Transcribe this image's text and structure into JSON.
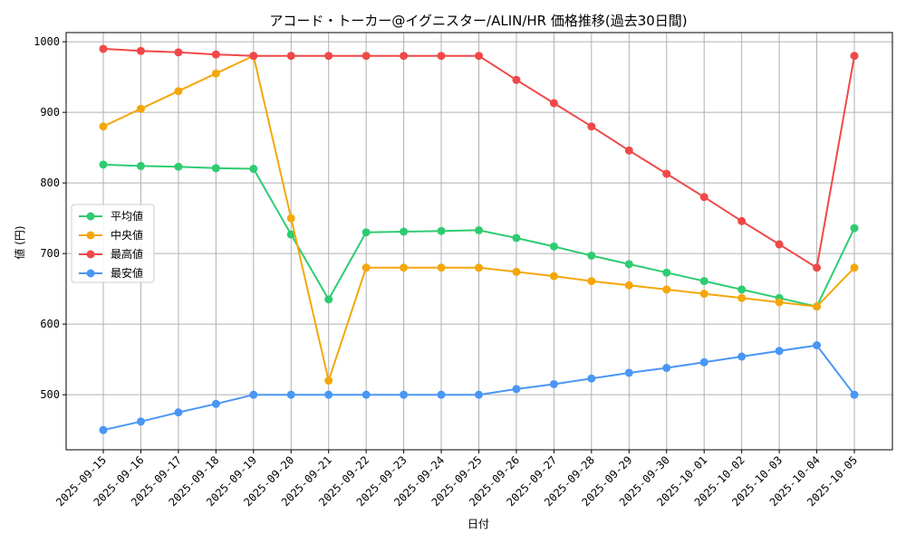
{
  "chart_data": {
    "type": "line",
    "title": "アコード・トーカー@イグニスター/ALIN/HR 価格推移(過去30日間)",
    "xlabel": "日付",
    "ylabel": "値 (円)",
    "ylim": [
      422,
      1013
    ],
    "yticks": [
      500,
      600,
      700,
      800,
      900,
      1000
    ],
    "grid": true,
    "legend_position": "center-left",
    "categories": [
      "2025-09-15",
      "2025-09-16",
      "2025-09-17",
      "2025-09-18",
      "2025-09-19",
      "2025-09-20",
      "2025-09-21",
      "2025-09-22",
      "2025-09-23",
      "2025-09-24",
      "2025-09-25",
      "2025-09-26",
      "2025-09-27",
      "2025-09-28",
      "2025-09-29",
      "2025-09-30",
      "2025-10-01",
      "2025-10-02",
      "2025-10-03",
      "2025-10-04",
      "2025-10-05"
    ],
    "series": [
      {
        "name": "平均値",
        "color": "#2ecc71",
        "values": [
          826,
          824,
          823,
          821,
          820,
          727,
          635,
          730,
          731,
          732,
          733,
          722,
          710,
          697,
          685,
          673,
          661,
          649,
          637,
          625,
          736
        ]
      },
      {
        "name": "中央値",
        "color": "#f5a70a",
        "values": [
          880,
          905,
          930,
          955,
          980,
          750,
          520,
          680,
          680,
          680,
          680,
          674,
          668,
          661,
          655,
          649,
          643,
          637,
          631,
          625,
          680
        ]
      },
      {
        "name": "最高値",
        "color": "#f04848",
        "values": [
          990,
          987,
          985,
          982,
          980,
          980,
          980,
          980,
          980,
          980,
          980,
          946,
          913,
          880,
          846,
          813,
          780,
          746,
          713,
          680,
          980
        ]
      },
      {
        "name": "最安値",
        "color": "#4a96f5",
        "values": [
          450,
          462,
          475,
          487,
          500,
          500,
          500,
          500,
          500,
          500,
          500,
          508,
          515,
          523,
          531,
          538,
          546,
          554,
          562,
          570,
          500
        ]
      }
    ]
  }
}
